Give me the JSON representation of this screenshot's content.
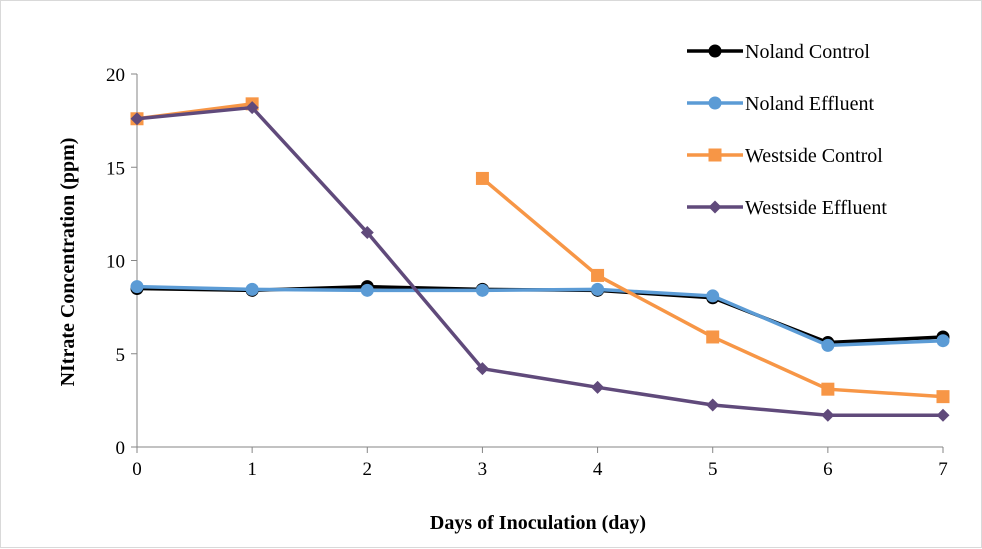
{
  "chart_data": {
    "type": "line",
    "title": "",
    "xlabel": "Days of Inoculation (day)",
    "ylabel": "NItrate Concentration (ppm)",
    "xlim": [
      0,
      7
    ],
    "ylim": [
      0,
      20
    ],
    "x_ticks": [
      0,
      1,
      2,
      3,
      4,
      5,
      6,
      7
    ],
    "y_ticks": [
      0,
      5,
      10,
      15,
      20
    ],
    "grid": false,
    "legend_position": "top-right",
    "series": [
      {
        "name": "Noland Control",
        "color": "#000000",
        "marker": "circle",
        "x": [
          0,
          1,
          2,
          3,
          4,
          5,
          6,
          7
        ],
        "y": [
          8.5,
          8.4,
          8.6,
          8.45,
          8.4,
          8.0,
          5.6,
          5.9
        ]
      },
      {
        "name": "Noland Effluent",
        "color": "#5b9bd5",
        "marker": "circle",
        "x": [
          0,
          1,
          2,
          3,
          4,
          5,
          6,
          7
        ],
        "y": [
          8.6,
          8.45,
          8.4,
          8.4,
          8.45,
          8.1,
          5.45,
          5.7
        ]
      },
      {
        "name": "Westside Control",
        "color": "#f79646",
        "marker": "square",
        "segments": [
          {
            "x": [
              0,
              1
            ],
            "y": [
              17.6,
              18.4
            ]
          },
          {
            "x": [
              3,
              4,
              5,
              6,
              7
            ],
            "y": [
              14.4,
              9.2,
              5.9,
              3.1,
              2.7
            ]
          }
        ]
      },
      {
        "name": "Westside Effluent",
        "color": "#604a7b",
        "marker": "diamond",
        "x": [
          0,
          1,
          2,
          3,
          4,
          5,
          6,
          7
        ],
        "y": [
          17.6,
          18.2,
          11.5,
          4.2,
          3.2,
          2.25,
          1.7,
          1.7
        ]
      }
    ]
  }
}
